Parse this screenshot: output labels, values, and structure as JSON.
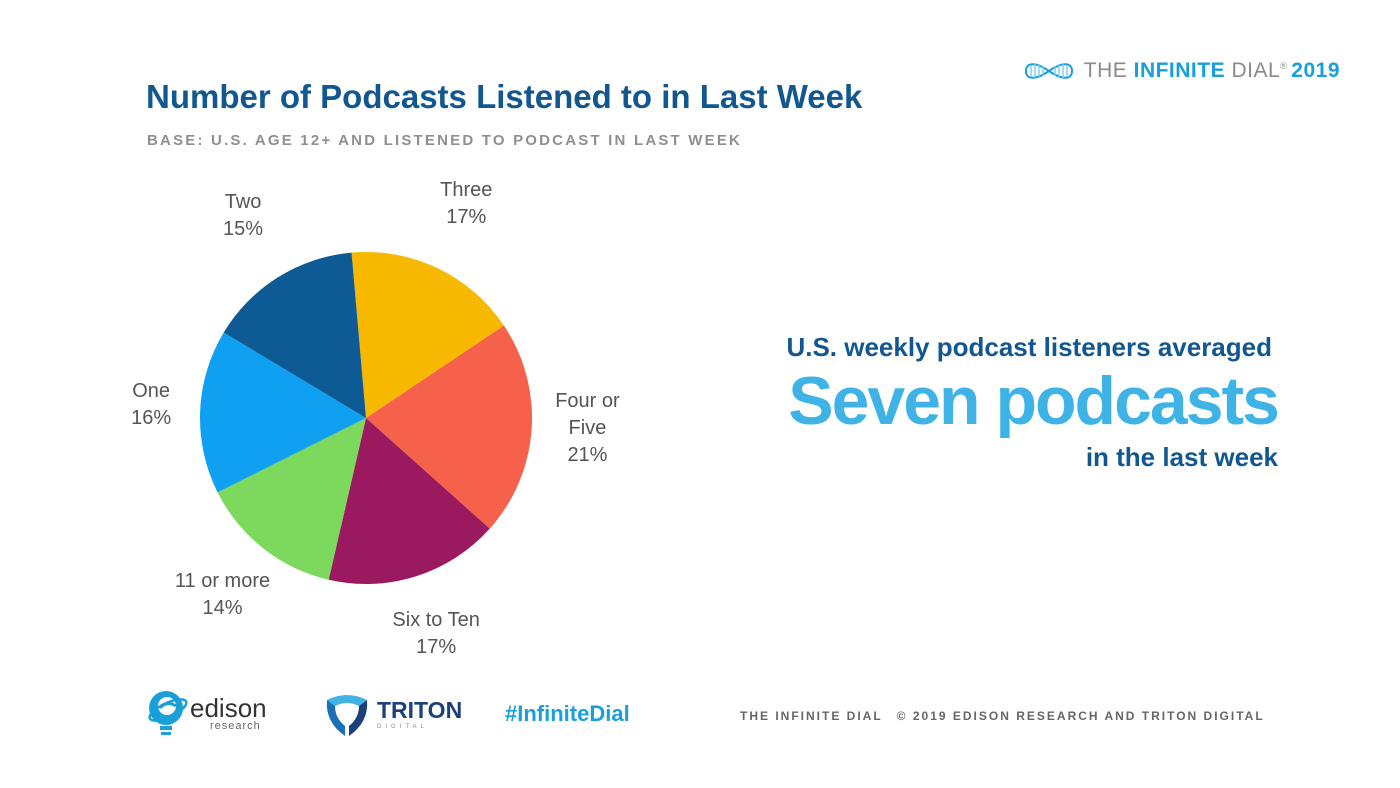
{
  "brand": {
    "prefix": "THE ",
    "highlight": "INFINITE",
    "suffix": " DIAL",
    "registered": "®",
    "year": "2019"
  },
  "header": {
    "title": "Number of Podcasts Listened to in Last Week",
    "subtitle": "BASE: U.S. AGE 12+ AND LISTENED TO PODCAST IN LAST WEEK"
  },
  "chart_data": {
    "type": "pie",
    "start_angle_deg": 355,
    "direction": "clockwise",
    "slices": [
      {
        "name": "Three",
        "value": 17,
        "label": "17%",
        "color": "#f6b900"
      },
      {
        "name": "Four or Five",
        "value": 21,
        "label": "21%",
        "color": "#f5614a"
      },
      {
        "name": "Six to Ten",
        "value": 17,
        "label": "17%",
        "color": "#9b1a5f"
      },
      {
        "name": "11 or more",
        "value": 14,
        "label": "14%",
        "color": "#7dd85e"
      },
      {
        "name": "One",
        "value": 16,
        "label": "16%",
        "color": "#0fa0f2"
      },
      {
        "name": "Two",
        "value": 15,
        "label": "15%",
        "color": "#0e5a95"
      }
    ]
  },
  "callout": {
    "line1": "U.S. weekly podcast listeners averaged",
    "big": "Seven podcasts",
    "line3": "in the last week"
  },
  "footer": {
    "edison_name": "edison",
    "edison_sub": "research",
    "triton_name": "TRITON",
    "triton_sub": "DIGITAL",
    "hashtag": "#InfiniteDial",
    "left_text": "THE INFINITE DIAL",
    "right_text": "© 2019 EDISON RESEARCH AND TRITON DIGITAL"
  },
  "colors": {
    "title": "#12578f",
    "accent": "#1a9fd8",
    "big_callout": "#3fb3e6"
  }
}
